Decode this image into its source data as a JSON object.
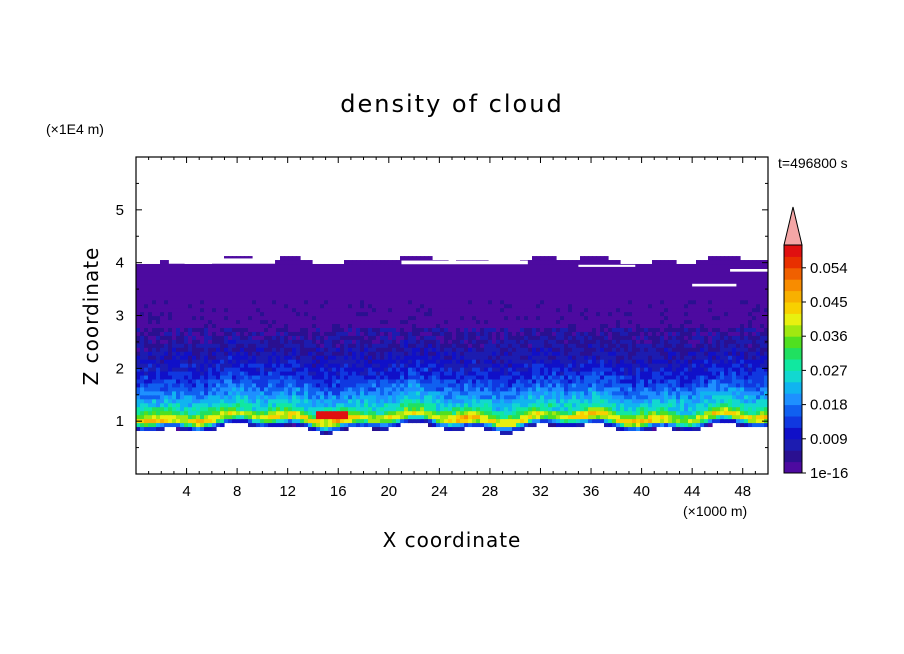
{
  "chart_data": {
    "type": "heatmap",
    "title": "density of cloud",
    "xlabel": "X coordinate",
    "ylabel": "Z coordinate",
    "x_unit": "(×1000 m)",
    "y_unit": "(×1E4 m)",
    "time_label": "t=496800 s",
    "xlim": [
      0,
      50
    ],
    "ylim": [
      0,
      6
    ],
    "x_ticks": [
      "4",
      "8",
      "12",
      "16",
      "20",
      "24",
      "28",
      "32",
      "36",
      "40",
      "44",
      "48"
    ],
    "x_tick_values": [
      4,
      8,
      12,
      16,
      20,
      24,
      28,
      32,
      36,
      40,
      44,
      48
    ],
    "y_ticks": [
      "1",
      "2",
      "3",
      "4",
      "5"
    ],
    "y_tick_values": [
      1,
      2,
      3,
      4,
      5
    ],
    "colorbar_labels": [
      "0.054",
      "0.045",
      "0.036",
      "0.027",
      "0.018",
      "0.009",
      "1e-16"
    ],
    "colorbar_label_values": [
      0.054,
      0.045,
      0.036,
      0.027,
      0.018,
      0.009,
      0
    ],
    "colorbar_levels": [
      0,
      0.003,
      0.006,
      0.009,
      0.012,
      0.015,
      0.018,
      0.021,
      0.024,
      0.027,
      0.03,
      0.033,
      0.036,
      0.039,
      0.042,
      0.045,
      0.048,
      0.051,
      0.054,
      0.057
    ],
    "colorbar_colors": [
      "#4d0aa0",
      "#2a1090",
      "#1c1cb0",
      "#1010c8",
      "#1038e0",
      "#1060f0",
      "#1e90ff",
      "#10b4f0",
      "#12d8d0",
      "#10e8a0",
      "#20e060",
      "#50e020",
      "#a0e810",
      "#e8f010",
      "#f8d000",
      "#f8b000",
      "#f88c00",
      "#f06000",
      "#e83000",
      "#e01010"
    ],
    "overflow_color": "#f4a6a6",
    "profile": [
      {
        "z": 0.88,
        "level": 1
      },
      {
        "z": 0.95,
        "level": 5
      },
      {
        "z": 1.02,
        "level": 12
      },
      {
        "z": 1.08,
        "level": 14
      },
      {
        "z": 1.15,
        "level": 11
      },
      {
        "z": 1.22,
        "level": 9
      },
      {
        "z": 1.3,
        "level": 8
      },
      {
        "z": 1.4,
        "level": 7
      },
      {
        "z": 1.52,
        "level": 6
      },
      {
        "z": 1.65,
        "level": 5
      },
      {
        "z": 1.8,
        "level": 4
      },
      {
        "z": 2.0,
        "level": 3
      },
      {
        "z": 2.25,
        "level": 2
      },
      {
        "z": 2.6,
        "level": 1
      },
      {
        "z": 2.9,
        "level": 1
      },
      {
        "z": 4.05,
        "level": 0
      }
    ],
    "cloud_top": 4.05,
    "cloud_base": 0.88,
    "max_value_location": {
      "x": 15.5,
      "z": 1.12
    }
  }
}
